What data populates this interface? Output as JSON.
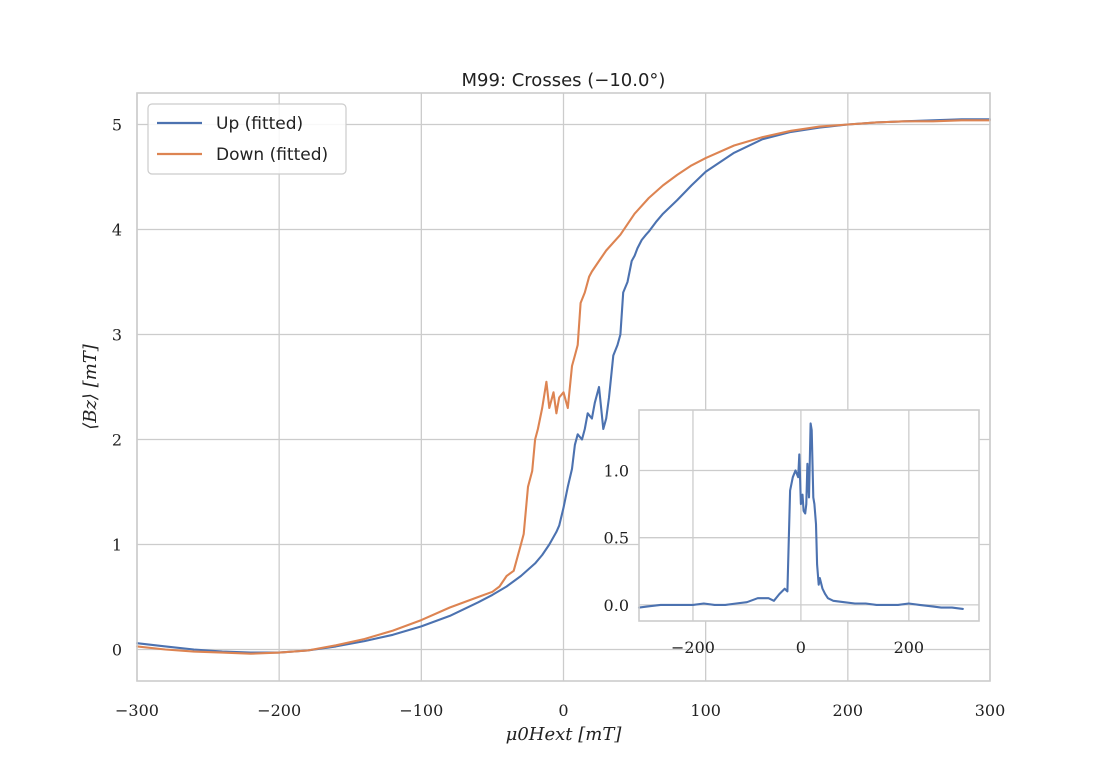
{
  "chart_data": [
    {
      "type": "line",
      "title": "M99: Crosses (−10.0°)",
      "xlabel": "μ0Hext [mT]",
      "ylabel": "⟨Bz⟩ [mT]",
      "xlim": [
        -300,
        300
      ],
      "ylim": [
        -0.3,
        5.3
      ],
      "xticks": [
        -300,
        -200,
        -100,
        0,
        100,
        200,
        300
      ],
      "xtick_labels": [
        "−300",
        "−200",
        "−100",
        "0",
        "100",
        "200",
        "300"
      ],
      "yticks": [
        0,
        1,
        2,
        3,
        4,
        5
      ],
      "ytick_labels": [
        "0",
        "1",
        "2",
        "3",
        "4",
        "5"
      ],
      "grid": true,
      "legend": "top-left",
      "series": [
        {
          "name": "Up (fitted)",
          "color": "#4c72b0",
          "x": [
            -300,
            -280,
            -260,
            -240,
            -220,
            -200,
            -180,
            -160,
            -140,
            -120,
            -100,
            -80,
            -60,
            -50,
            -40,
            -30,
            -20,
            -15,
            -10,
            -5,
            -3,
            0,
            3,
            6,
            8,
            10,
            13,
            15,
            17,
            20,
            22,
            25,
            28,
            30,
            32,
            35,
            38,
            40,
            42,
            45,
            48,
            50,
            52,
            55,
            58,
            60,
            65,
            70,
            80,
            90,
            100,
            120,
            140,
            160,
            180,
            200,
            220,
            240,
            260,
            280,
            300
          ],
          "y": [
            0.06,
            0.03,
            0.0,
            -0.02,
            -0.03,
            -0.03,
            -0.01,
            0.03,
            0.08,
            0.14,
            0.22,
            0.32,
            0.45,
            0.52,
            0.6,
            0.7,
            0.82,
            0.9,
            1.0,
            1.12,
            1.18,
            1.35,
            1.55,
            1.72,
            1.95,
            2.05,
            2.0,
            2.1,
            2.25,
            2.2,
            2.35,
            2.5,
            2.1,
            2.2,
            2.4,
            2.8,
            2.9,
            3.0,
            3.4,
            3.5,
            3.7,
            3.75,
            3.82,
            3.9,
            3.95,
            3.98,
            4.07,
            4.15,
            4.28,
            4.42,
            4.55,
            4.73,
            4.86,
            4.93,
            4.97,
            5.0,
            5.02,
            5.03,
            5.04,
            5.05,
            5.05
          ]
        },
        {
          "name": "Down (fitted)",
          "color": "#dd8452",
          "x": [
            -300,
            -280,
            -260,
            -240,
            -220,
            -200,
            -180,
            -160,
            -140,
            -120,
            -100,
            -80,
            -60,
            -50,
            -45,
            -40,
            -35,
            -30,
            -28,
            -25,
            -22,
            -20,
            -18,
            -15,
            -12,
            -10,
            -7,
            -5,
            -3,
            0,
            3,
            6,
            8,
            10,
            12,
            15,
            18,
            20,
            25,
            30,
            40,
            50,
            60,
            70,
            80,
            90,
            100,
            120,
            140,
            160,
            180,
            200,
            220,
            240,
            260,
            280,
            300
          ],
          "y": [
            0.03,
            0.0,
            -0.02,
            -0.03,
            -0.04,
            -0.03,
            -0.01,
            0.04,
            0.1,
            0.18,
            0.28,
            0.4,
            0.5,
            0.55,
            0.6,
            0.7,
            0.75,
            1.0,
            1.1,
            1.55,
            1.7,
            2.0,
            2.1,
            2.3,
            2.55,
            2.3,
            2.45,
            2.25,
            2.4,
            2.45,
            2.3,
            2.7,
            2.8,
            2.9,
            3.3,
            3.4,
            3.55,
            3.6,
            3.7,
            3.8,
            3.95,
            4.15,
            4.3,
            4.42,
            4.52,
            4.61,
            4.68,
            4.8,
            4.88,
            4.94,
            4.98,
            5.0,
            5.02,
            5.03,
            5.03,
            5.04,
            5.04
          ]
        }
      ]
    },
    {
      "type": "line",
      "title": "",
      "xlim": [
        -300,
        330
      ],
      "ylim": [
        -0.12,
        1.45
      ],
      "xticks": [
        -200,
        0,
        200
      ],
      "xtick_labels": [
        "−200",
        "0",
        "200"
      ],
      "yticks": [
        0.0,
        0.5,
        1.0
      ],
      "ytick_labels": [
        "0.0",
        "0.5",
        "1.0"
      ],
      "grid": true,
      "series": [
        {
          "color": "#4c72b0",
          "x": [
            -300,
            -280,
            -260,
            -240,
            -220,
            -200,
            -180,
            -160,
            -140,
            -120,
            -100,
            -80,
            -60,
            -50,
            -40,
            -30,
            -25,
            -20,
            -15,
            -10,
            -5,
            -3,
            0,
            3,
            5,
            8,
            10,
            12,
            15,
            18,
            20,
            23,
            25,
            28,
            30,
            33,
            35,
            40,
            45,
            50,
            60,
            80,
            100,
            120,
            140,
            160,
            180,
            200,
            220,
            240,
            260,
            280,
            300
          ],
          "y": [
            -0.02,
            -0.01,
            0.0,
            0.0,
            0.0,
            0.0,
            0.01,
            0.0,
            0.0,
            0.01,
            0.02,
            0.05,
            0.05,
            0.03,
            0.08,
            0.12,
            0.1,
            0.85,
            0.95,
            1.0,
            0.95,
            1.12,
            0.75,
            0.82,
            0.7,
            0.68,
            0.75,
            1.05,
            0.8,
            1.35,
            1.3,
            0.8,
            0.75,
            0.6,
            0.3,
            0.15,
            0.2,
            0.12,
            0.08,
            0.05,
            0.03,
            0.02,
            0.01,
            0.01,
            0.0,
            0.0,
            0.0,
            0.01,
            0.0,
            -0.01,
            -0.02,
            -0.02,
            -0.03
          ]
        }
      ]
    }
  ]
}
